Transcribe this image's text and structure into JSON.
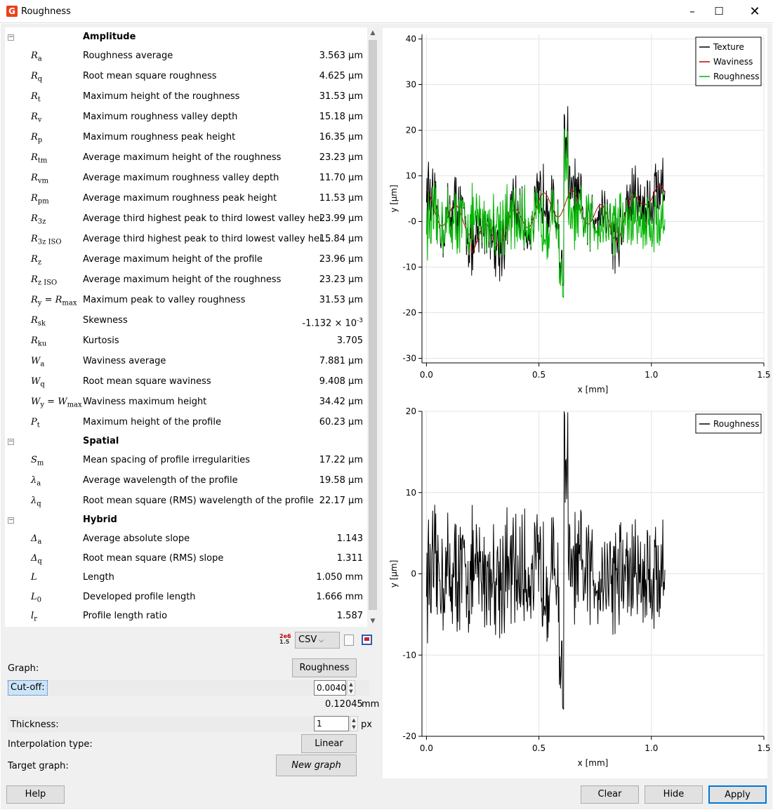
{
  "window": {
    "title": "Roughness",
    "icon": "app-logo-icon",
    "controls": [
      "minimize-icon",
      "maximize-icon",
      "close-icon"
    ]
  },
  "params": {
    "groups": {
      "amplitude": "Amplitude",
      "spatial": "Spatial",
      "hybrid": "Hybrid"
    },
    "amplitude": [
      {
        "sym": "R",
        "sub": "a",
        "desc": "Roughness average",
        "val": "3.563 µm"
      },
      {
        "sym": "R",
        "sub": "q",
        "desc": "Root mean square roughness",
        "val": "4.625 µm"
      },
      {
        "sym": "R",
        "sub": "t",
        "desc": "Maximum height of the roughness",
        "val": "31.53 µm"
      },
      {
        "sym": "R",
        "sub": "v",
        "desc": "Maximum roughness valley depth",
        "val": "15.18 µm"
      },
      {
        "sym": "R",
        "sub": "p",
        "desc": "Maximum roughness peak height",
        "val": "16.35 µm"
      },
      {
        "sym": "R",
        "sub": "tm",
        "desc": "Average maximum height of the roughness",
        "val": "23.23 µm"
      },
      {
        "sym": "R",
        "sub": "vm",
        "desc": "Average maximum roughness valley depth",
        "val": "11.70 µm"
      },
      {
        "sym": "R",
        "sub": "pm",
        "desc": "Average maximum roughness peak height",
        "val": "11.53 µm"
      },
      {
        "sym": "R",
        "sub": "3z",
        "desc": "Average third highest peak to third lowest valley hei...",
        "val": "23.99 µm"
      },
      {
        "sym": "R",
        "sub": "3z ISO",
        "desc": "Average third highest peak to third lowest valley hei...",
        "val": "15.84 µm"
      },
      {
        "sym": "R",
        "sub": "z",
        "desc": "Average maximum height of the profile",
        "val": "23.96 µm"
      },
      {
        "sym": "R",
        "sub": "z ISO",
        "desc": "Average maximum height of the roughness",
        "val": "23.23 µm"
      },
      {
        "sym": "R",
        "sub": "y",
        "sym2": " = R",
        "sub2": "max",
        "desc": "Maximum peak to valley roughness",
        "val": "31.53 µm"
      },
      {
        "sym": "R",
        "sub": "sk",
        "desc": "Skewness",
        "val": "-1.132 × 10",
        "sup": "-3"
      },
      {
        "sym": "R",
        "sub": "ku",
        "desc": "Kurtosis",
        "val": "3.705"
      },
      {
        "sym": "W",
        "sub": "a",
        "desc": "Waviness average",
        "val": "7.881 µm"
      },
      {
        "sym": "W",
        "sub": "q",
        "desc": "Root mean square waviness",
        "val": "9.408 µm"
      },
      {
        "sym": "W",
        "sub": "y",
        "sym2": " = W",
        "sub2": "max",
        "desc": "Waviness maximum height",
        "val": "34.42 µm"
      },
      {
        "sym": "P",
        "sub": "t",
        "desc": "Maximum height of the profile",
        "val": "60.23 µm"
      }
    ],
    "spatial": [
      {
        "sym": "S",
        "sub": "m",
        "desc": "Mean spacing of profile irregularities",
        "val": "17.22 µm"
      },
      {
        "sym": "λ",
        "sub": "a",
        "desc": "Average wavelength of the profile",
        "val": "19.58 µm"
      },
      {
        "sym": "λ",
        "sub": "q",
        "desc": "Root mean square (RMS) wavelength of the profile",
        "val": "22.17 µm"
      }
    ],
    "hybrid": [
      {
        "sym": "Δ",
        "sub": "a",
        "desc": "Average absolute slope",
        "val": "1.143"
      },
      {
        "sym": "Δ",
        "sub": "q",
        "desc": "Root mean square (RMS) slope",
        "val": "1.311"
      },
      {
        "sym": "L",
        "sub": "",
        "desc": "Length",
        "val": "1.050 mm"
      },
      {
        "sym": "L",
        "sub": "0",
        "desc": "Developed profile length",
        "val": "1.666 mm"
      },
      {
        "sym": "l",
        "sub": "r",
        "desc": "Profile length ratio",
        "val": "1.587"
      }
    ]
  },
  "export": {
    "format": "CSV"
  },
  "controls": {
    "graph_label": "Graph:",
    "graph_value": "Roughness",
    "cutoff_label": "Cut-off:",
    "cutoff_value": "0.0040",
    "cutoff_mm": "0.12045",
    "cutoff_unit": "mm",
    "thickness_label": "Thickness:",
    "thickness_value": "1",
    "thickness_unit": "px",
    "interp_label": "Interpolation type:",
    "interp_value": "Linear",
    "target_label": "Target graph:",
    "target_value": "New graph"
  },
  "buttons": {
    "help": "Help",
    "clear": "Clear",
    "hide": "Hide",
    "apply": "Apply"
  },
  "chart_data": [
    {
      "type": "line",
      "xlabel": "x [mm]",
      "ylabel": "y [µm]",
      "xlim": [
        -0.02,
        1.5
      ],
      "ylim": [
        -31,
        41
      ],
      "xticks": [
        "0.0",
        "0.5",
        "1.0",
        "1.5"
      ],
      "yticks": [
        "40",
        "30",
        "20",
        "10",
        "-0",
        "-10",
        "-20",
        "-30"
      ],
      "legend_position": "top-right",
      "series": [
        {
          "name": "Texture",
          "color": "#000000"
        },
        {
          "name": "Waviness",
          "color": "#c00000"
        },
        {
          "name": "Roughness",
          "color": "#00b400"
        }
      ]
    },
    {
      "type": "line",
      "xlabel": "x [mm]",
      "ylabel": "y [µm]",
      "xlim": [
        -0.02,
        1.5
      ],
      "ylim": [
        -20,
        20
      ],
      "xticks": [
        "0.0",
        "0.5",
        "1.0",
        "1.5"
      ],
      "yticks": [
        "20",
        "10",
        "0",
        "-10",
        "-20"
      ],
      "legend_position": "top-right",
      "series": [
        {
          "name": "Roughness",
          "color": "#000000"
        }
      ]
    }
  ]
}
